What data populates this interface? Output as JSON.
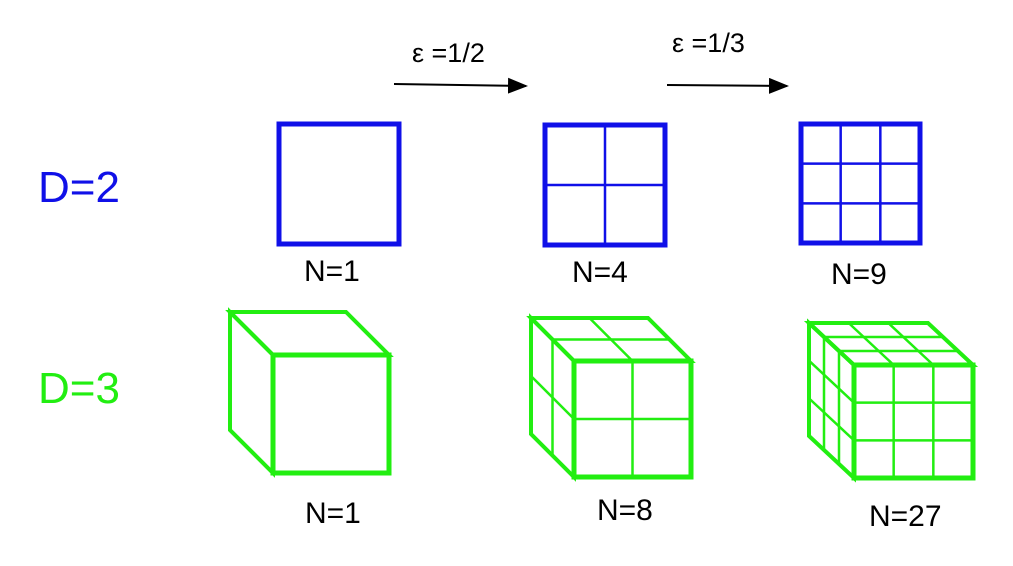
{
  "colors": {
    "d2": "#1010E8",
    "d3": "#22EE11",
    "text": "#000000",
    "background": "#FFFFFF"
  },
  "arrows": [
    {
      "label": "ε =1/2"
    },
    {
      "label": "ε =1/3"
    }
  ],
  "rows": [
    {
      "label": "D=2",
      "color_key": "d2",
      "items": [
        {
          "grid": 1,
          "count_label": "N=1"
        },
        {
          "grid": 2,
          "count_label": "N=4"
        },
        {
          "grid": 3,
          "count_label": "N=9"
        }
      ]
    },
    {
      "label": "D=3",
      "color_key": "d3",
      "items": [
        {
          "grid": 1,
          "count_label": "N=1"
        },
        {
          "grid": 2,
          "count_label": "N=8"
        },
        {
          "grid": 3,
          "count_label": "N=27"
        }
      ]
    }
  ]
}
